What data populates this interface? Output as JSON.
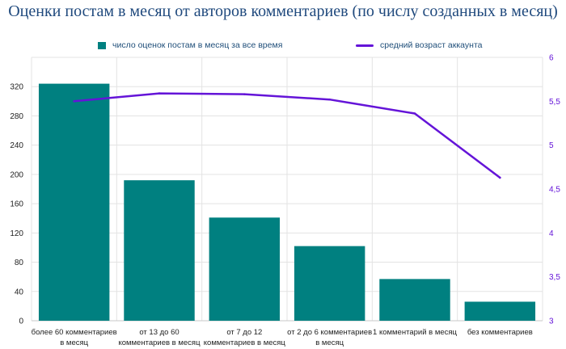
{
  "chart_data": {
    "type": "bar",
    "title": "Оценки постам в месяц от авторов комментариев (по числу созданных в месяц)",
    "categories": [
      [
        "более 60 комментариев",
        "в месяц"
      ],
      [
        "от 13 до 60",
        "комментариев в месяц"
      ],
      [
        "от 7 до 12",
        "комментариев в месяц"
      ],
      [
        "от 2 до 6 комментариев",
        "в месяц"
      ],
      [
        "1 комментарий в месяц"
      ],
      [
        "без комментариев"
      ]
    ],
    "series": [
      {
        "name": "число оценок постам в месяц за все время",
        "type": "bar",
        "axis": "left",
        "color": "#008080",
        "values": [
          324,
          192,
          141,
          102,
          57,
          26
        ]
      },
      {
        "name": "средний возраст аккаунта",
        "type": "line",
        "axis": "right",
        "color": "#6414d8",
        "values": [
          5.5,
          5.59,
          5.58,
          5.52,
          5.36,
          4.63
        ]
      }
    ],
    "ylim_left": [
      0,
      360
    ],
    "yticks_left": [
      "0",
      "40",
      "80",
      "120",
      "160",
      "200",
      "240",
      "280",
      "320"
    ],
    "ylim_right": [
      3,
      6
    ],
    "yticks_right": [
      "3",
      "3,5",
      "4",
      "4,5",
      "5",
      "5,5",
      "6"
    ],
    "grid": true,
    "legend_position": "top"
  }
}
